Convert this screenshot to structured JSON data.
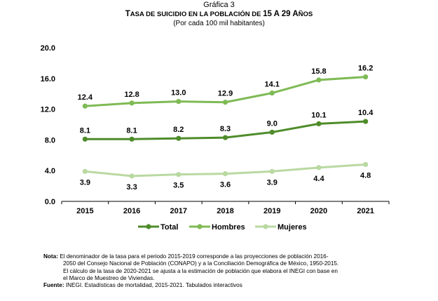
{
  "figure_label": "Gráfica 3",
  "chart_title_first": "T",
  "chart_title_rest": "ASA DE SUICIDIO EN LA POBLACIÓN DE ",
  "chart_title_range": "15 A 29 ",
  "chart_title_end_first": "A",
  "chart_title_end_rest": "ÑOS",
  "chart_subtitle": "(Por cada 100 mil habitantes)",
  "chart_data": {
    "type": "line",
    "x": [
      "2015",
      "2016",
      "2017",
      "2018",
      "2019",
      "2020",
      "2021"
    ],
    "ylim": [
      0,
      20
    ],
    "yticks": [
      "0.0",
      "4.0",
      "8.0",
      "12.0",
      "16.0",
      "20.0"
    ],
    "grid": false,
    "legend_position": "bottom",
    "series": [
      {
        "name": "Total",
        "values": [
          8.1,
          8.1,
          8.2,
          8.3,
          9.0,
          10.1,
          10.4
        ],
        "labels": [
          "8.1",
          "8.1",
          "8.2",
          "8.3",
          "9.0",
          "10.1",
          "10.4"
        ],
        "color": "#4e8c2a",
        "label_position": "above"
      },
      {
        "name": "Hombres",
        "values": [
          12.4,
          12.8,
          13.0,
          12.9,
          14.1,
          15.8,
          16.2
        ],
        "labels": [
          "12.4",
          "12.8",
          "13.0",
          "12.9",
          "14.1",
          "15.8",
          "16.2"
        ],
        "color": "#7fba55",
        "label_position": "above"
      },
      {
        "name": "Mujeres",
        "values": [
          3.9,
          3.3,
          3.5,
          3.6,
          3.9,
          4.4,
          4.8
        ],
        "labels": [
          "3.9",
          "3.3",
          "3.5",
          "3.6",
          "3.9",
          "4.4",
          "4.8"
        ],
        "color": "#b9d9a1",
        "label_position": "below"
      }
    ]
  },
  "notes": {
    "nota_label": "Nota:",
    "nota_line1": " El denominador de la tasa para el periodo 2015-2019 corresponde a las proyecciones de población 2016-",
    "nota_line2": "2050 del Consejo Nacional de Población (CONAPO) y a la Conciliación Demográfica de México, 1950-2015.",
    "nota_line3": "El cálculo de la tasa de 2020-2021 se ajusta a la estimación de población que elabora el INEGI con base en",
    "nota_line4": "el Marco de Muestreo de Viviendas.",
    "fuente_label": "Fuente:",
    "fuente_text": " INEGI. Estadísticas de mortalidad, 2015-2021. Tabulados interactivos"
  }
}
